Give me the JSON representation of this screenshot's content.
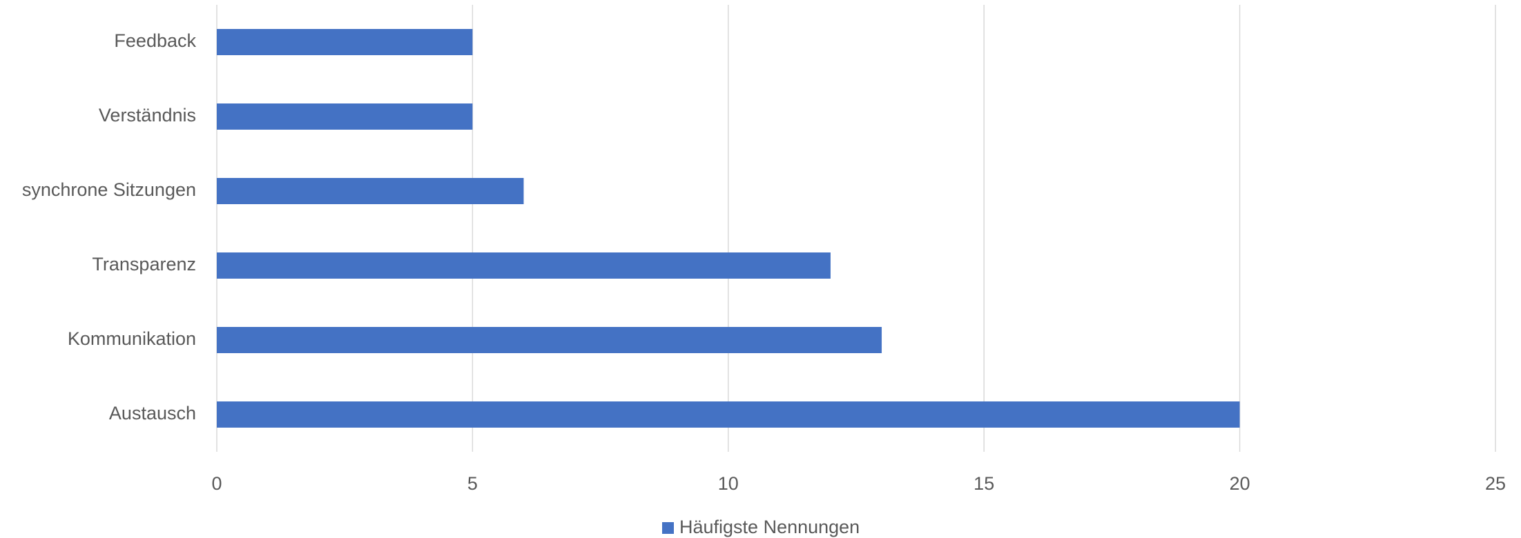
{
  "chart_data": {
    "type": "bar",
    "orientation": "horizontal",
    "categories": [
      "Austausch",
      "Kommunikation",
      "Transparenz",
      "synchrone Sitzungen",
      "Verständnis",
      "Feedback"
    ],
    "series": [
      {
        "name": "Häufigste Nennungen",
        "color": "#4472c4",
        "values": [
          20,
          13,
          12,
          6,
          5,
          5
        ]
      }
    ],
    "xlim": [
      0,
      25
    ],
    "xticks": [
      0,
      5,
      10,
      15,
      20,
      25
    ],
    "grid": true,
    "legend": "bottom"
  }
}
